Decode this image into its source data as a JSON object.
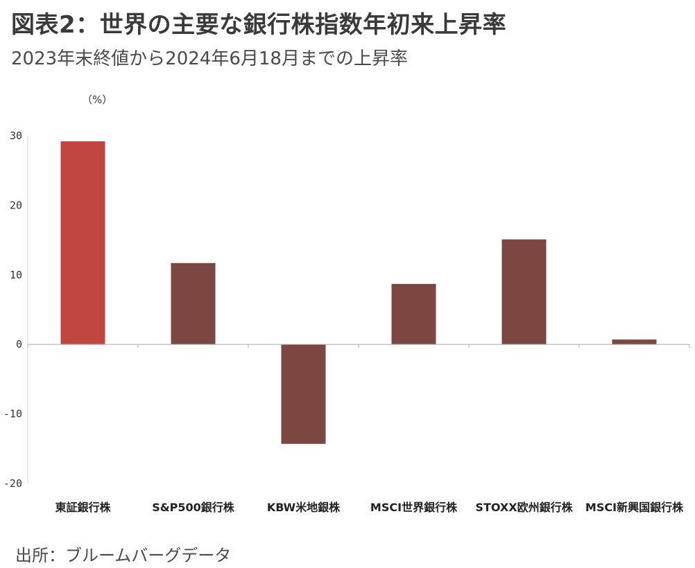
{
  "header": {
    "title": "図表2：世界の主要な銀行株指数年初来上昇率",
    "subtitle": "2023年末終値から2024年6月18月までの上昇率"
  },
  "footer": {
    "source": "出所：ブルームバーグデータ"
  },
  "chart_data": {
    "type": "bar",
    "unit_label": "（%）",
    "categories": [
      "東証銀行株",
      "S&P500銀行株",
      "KBW米地銀株",
      "MSCI世界銀行株",
      "STOXX欧州銀行株",
      "MSCI新興国銀行株"
    ],
    "values": [
      29.2,
      11.7,
      -14.3,
      8.7,
      15.1,
      0.7
    ],
    "colors": [
      "#c0463f",
      "#7b4740",
      "#7b4740",
      "#7b4740",
      "#7b4740",
      "#7b4740"
    ],
    "ylim": [
      -20,
      30
    ],
    "yticks": [
      30,
      20,
      10,
      0,
      -10,
      -20
    ],
    "grid": false,
    "legend": "none"
  }
}
